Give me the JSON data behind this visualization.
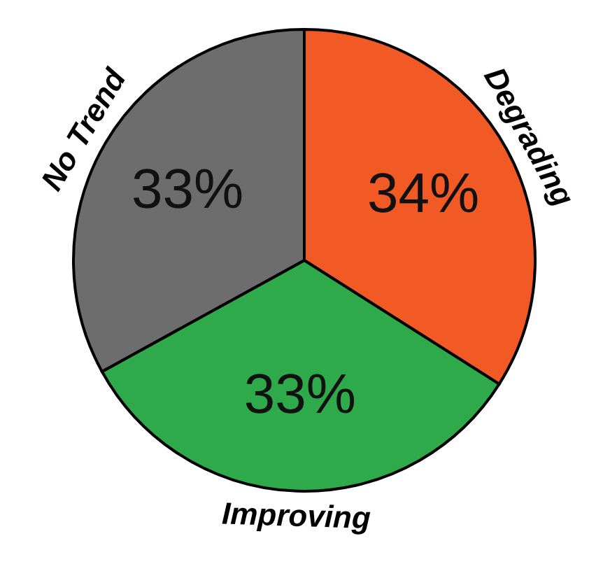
{
  "chart_data": {
    "type": "pie",
    "categories": [
      "Degrading",
      "Improving",
      "No Trend"
    ],
    "values": [
      34,
      33,
      33
    ],
    "colors": [
      "#f15a24",
      "#2eaa4a",
      "#6d6d6d"
    ],
    "value_labels": [
      "34%",
      "33%",
      "33%"
    ]
  }
}
